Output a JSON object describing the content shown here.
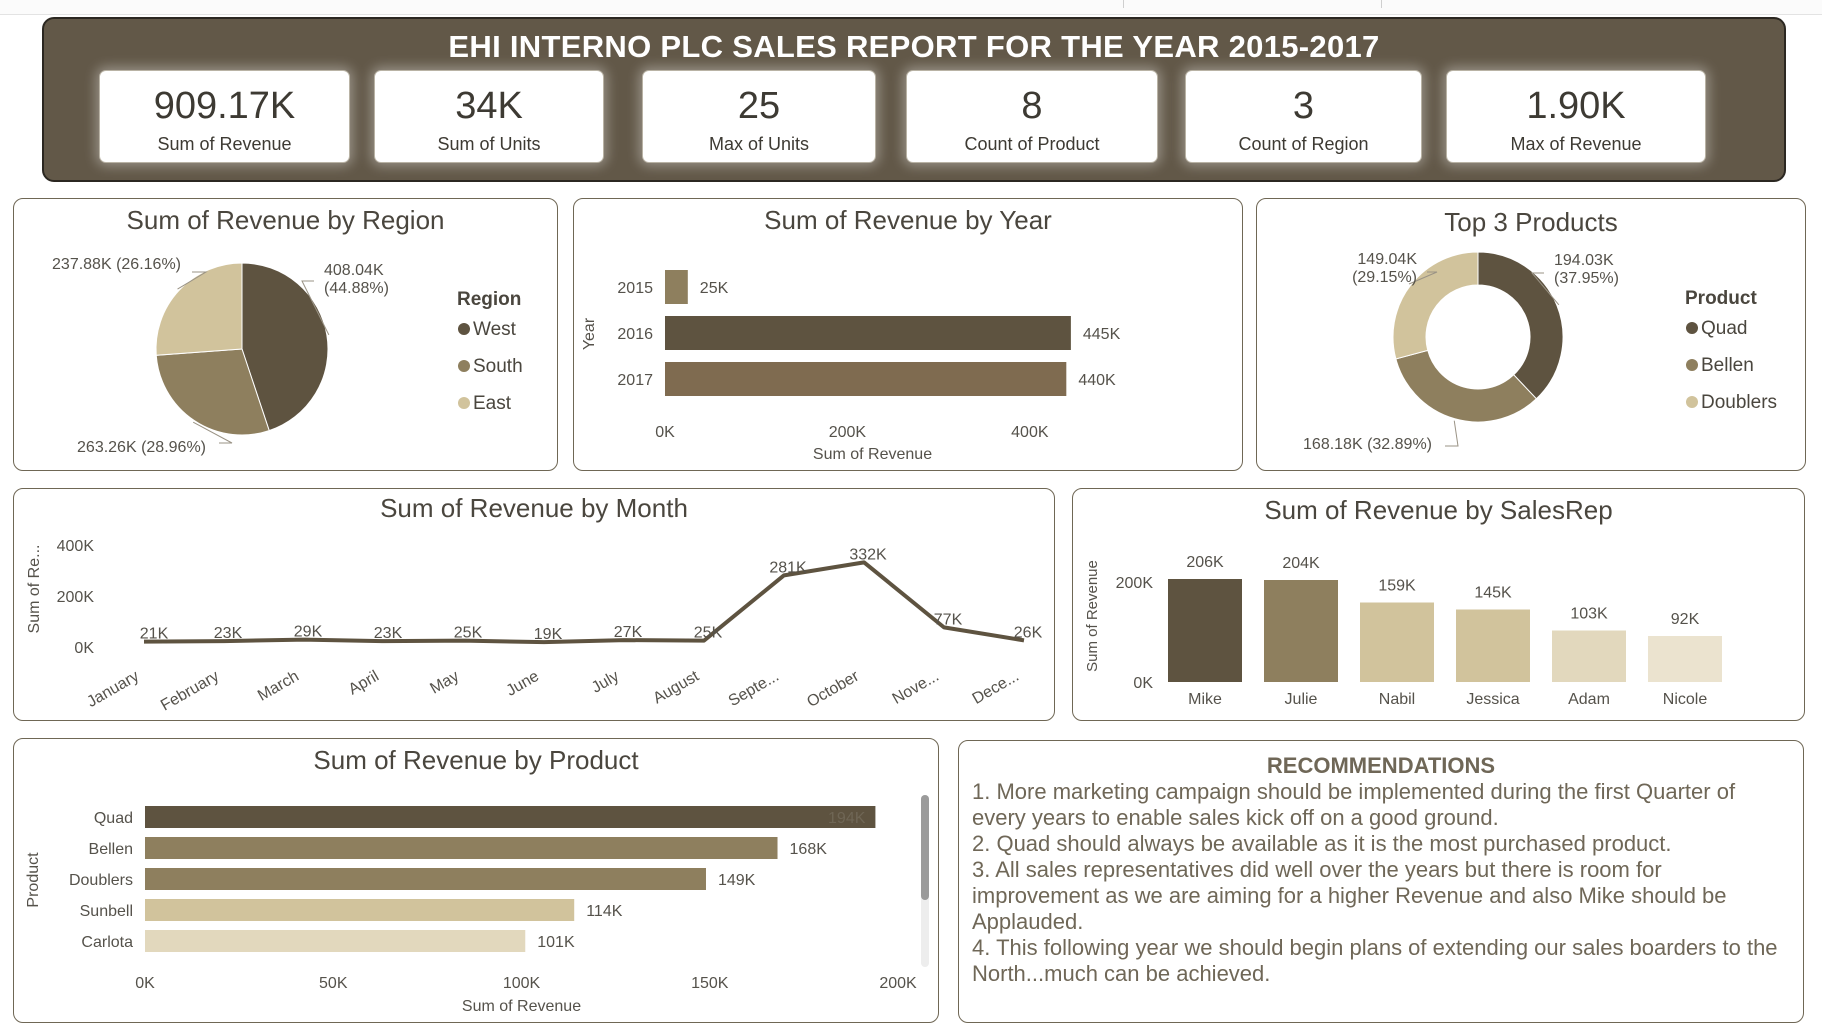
{
  "header": {
    "title": "EHI INTERNO PLC SALES REPORT FOR THE YEAR 2015-2017"
  },
  "kpis": [
    {
      "value": "909.17K",
      "label": "Sum of Revenue"
    },
    {
      "value": "34K",
      "label": "Sum of Units"
    },
    {
      "value": "25",
      "label": "Max of Units"
    },
    {
      "value": "8",
      "label": "Count of Product"
    },
    {
      "value": "3",
      "label": "Count of Region"
    },
    {
      "value": "1.90K",
      "label": "Max of Revenue"
    }
  ],
  "colors": {
    "dark": "#5e5340",
    "medium": "#8e7f5e",
    "light": "#d1c39c",
    "lighter": "#e2d8bd",
    "lightest": "#ebe3cf",
    "brown": "#7f6b50",
    "header_bg": "#625848"
  },
  "chart_data": [
    {
      "id": "region",
      "type": "pie",
      "title": "Sum of Revenue by Region",
      "legend_title": "Region",
      "legend_position": "right",
      "slices": [
        {
          "name": "West",
          "value": 408.04,
          "label": "408.04K (44.88%)",
          "color": "#5e5340"
        },
        {
          "name": "South",
          "value": 263.26,
          "label": "263.26K (28.96%)",
          "color": "#8e7f5e"
        },
        {
          "name": "East",
          "value": 237.88,
          "label": "237.88K (26.16%)",
          "color": "#d1c39c"
        }
      ]
    },
    {
      "id": "year",
      "type": "bar",
      "orientation": "horizontal",
      "title": "Sum of Revenue by Year",
      "categories": [
        "2015",
        "2016",
        "2017"
      ],
      "values": [
        25,
        445,
        440
      ],
      "data_labels": [
        "25K",
        "445K",
        "440K"
      ],
      "colors": [
        "#8e7f5e",
        "#5e5340",
        "#7f6b50"
      ],
      "xlabel": "Sum of Revenue",
      "ylabel": "Year",
      "xlim": [
        0,
        455
      ],
      "xticks": [
        0,
        200,
        400
      ],
      "xtick_labels": [
        "0K",
        "200K",
        "400K"
      ]
    },
    {
      "id": "top3",
      "type": "pie",
      "variant": "donut",
      "title": "Top 3 Products",
      "legend_title": "Product",
      "legend_position": "right",
      "slices": [
        {
          "name": "Quad",
          "value": 194.03,
          "label": "194.03K (37.95%)",
          "color": "#5e5340"
        },
        {
          "name": "Bellen",
          "value": 168.18,
          "label": "168.18K (32.89%)",
          "color": "#8e7f5e"
        },
        {
          "name": "Doublers",
          "value": 149.04,
          "label": "149.04K (29.15%)",
          "color": "#d1c39c"
        }
      ]
    },
    {
      "id": "month",
      "type": "line",
      "title": "Sum of Revenue by Month",
      "categories": [
        "January",
        "February",
        "March",
        "April",
        "May",
        "June",
        "July",
        "August",
        "Septe...",
        "October",
        "Nove...",
        "Dece..."
      ],
      "values": [
        21,
        23,
        29,
        23,
        25,
        19,
        27,
        25,
        281,
        332,
        77,
        26
      ],
      "data_labels": [
        "21K",
        "23K",
        "29K",
        "23K",
        "25K",
        "19K",
        "27K",
        "25K",
        "281K",
        "332K",
        "77K",
        "26K"
      ],
      "ylabel": "Sum of Re...",
      "ylim": [
        0,
        400
      ],
      "yticks": [
        0,
        200,
        400
      ],
      "ytick_labels": [
        "0K",
        "200K",
        "400K"
      ],
      "color": "#5e5340"
    },
    {
      "id": "salesrep",
      "type": "bar",
      "orientation": "vertical",
      "title": "Sum of Revenue by SalesRep",
      "categories": [
        "Mike",
        "Julie",
        "Nabil",
        "Jessica",
        "Adam",
        "Nicole"
      ],
      "values": [
        206,
        204,
        159,
        145,
        103,
        92
      ],
      "data_labels": [
        "206K",
        "204K",
        "159K",
        "145K",
        "103K",
        "92K"
      ],
      "colors": [
        "#5e5340",
        "#8e7f5e",
        "#d1c39c",
        "#d1c39c",
        "#e2d8bd",
        "#ebe3cf"
      ],
      "ylabel": "Sum of Revenue",
      "ylim": [
        0,
        268
      ],
      "yticks": [
        0,
        200
      ],
      "ytick_labels": [
        "0K",
        "200K"
      ]
    },
    {
      "id": "product",
      "type": "bar",
      "orientation": "horizontal",
      "title": "Sum of Revenue by Product",
      "categories": [
        "Quad",
        "Bellen",
        "Doublers",
        "Sunbell",
        "Carlota"
      ],
      "values": [
        194,
        168,
        149,
        114,
        101
      ],
      "data_labels": [
        "194K",
        "168K",
        "149K",
        "114K",
        "101K"
      ],
      "colors": [
        "#5e5340",
        "#8e7f5e",
        "#8e7f5e",
        "#d1c39c",
        "#e2d8bd"
      ],
      "xlabel": "Sum of Revenue",
      "ylabel": "Product",
      "xlim": [
        0,
        200
      ],
      "xticks": [
        0,
        50,
        100,
        150,
        200
      ],
      "xtick_labels": [
        "0K",
        "50K",
        "100K",
        "150K",
        "200K"
      ]
    }
  ],
  "recommendations": {
    "title": "RECOMMENDATIONS",
    "items": [
      "1. More marketing campaign should be implemented during the first Quarter of every years to enable sales kick off on a good ground.",
      "2. Quad should always be available as it is the most purchased product.",
      "3.  All sales representatives did well over the years but there is room for improvement as we are aiming for a higher Revenue and also Mike should be Applauded.",
      "4. This following year we should begin plans of extending our sales boarders to the North...much can be achieved."
    ]
  }
}
